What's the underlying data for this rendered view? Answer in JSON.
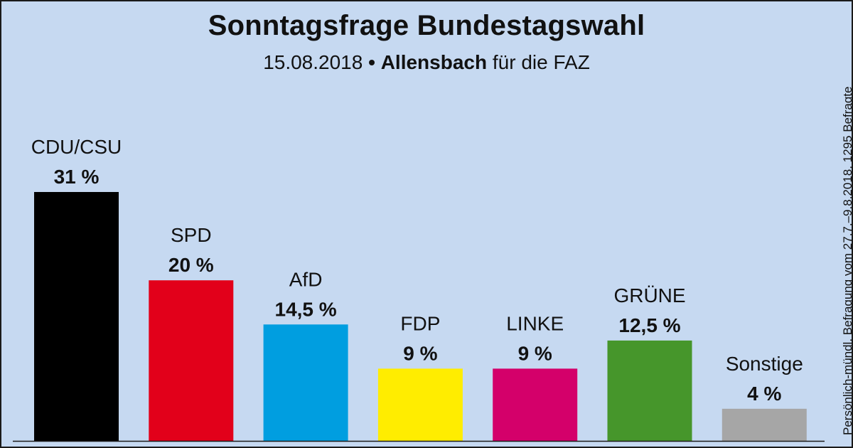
{
  "chart_data": {
    "type": "bar",
    "title": "Sonntagsfrage Bundestagswahl",
    "subtitle": {
      "date": "15.08.2018",
      "separator": "•",
      "institute": "Allensbach",
      "client": "für die FAZ"
    },
    "source_note": "Persönlich-mündl. Befragung vom 27.7.–9.8.2018, 1295 Befragte",
    "categories": [
      "CDU/CSU",
      "SPD",
      "AfD",
      "FDP",
      "LINKE",
      "GRÜNE",
      "Sonstige"
    ],
    "values": [
      31,
      20,
      14.5,
      9,
      9,
      12.5,
      4
    ],
    "value_labels": [
      "31 %",
      "20 %",
      "14,5 %",
      "9 %",
      "9 %",
      "12,5 %",
      "4 %"
    ],
    "colors": [
      "#000000",
      "#e2001a",
      "#009ee0",
      "#ffed00",
      "#d4006a",
      "#46962b",
      "#a6a6a6"
    ],
    "ylim": [
      0,
      31
    ],
    "grid": false,
    "legend": "none",
    "xlabel": "",
    "ylabel": ""
  }
}
